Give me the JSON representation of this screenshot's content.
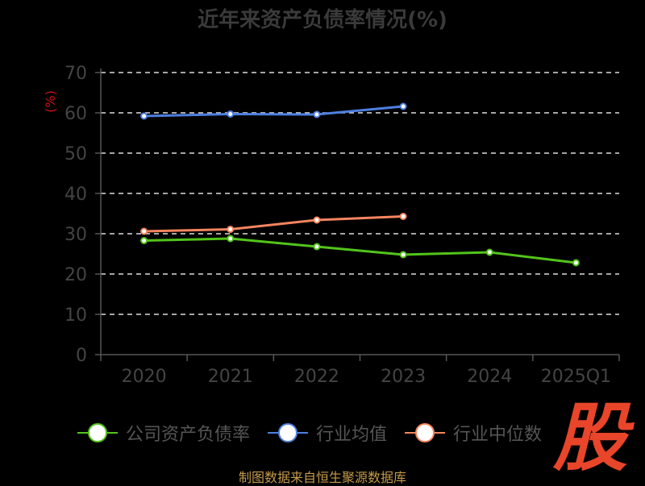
{
  "title": "近年来资产负债率情况(%)",
  "source": "制图数据来自恒生聚源数据库",
  "logo_text": "股",
  "colors": {
    "background": "#000000",
    "axis": "#555555",
    "grid": "#dddddd",
    "tick_label": "#444444",
    "unit_label": "#cc1111",
    "series": [
      "#52c41a",
      "#4e7fe0",
      "#f5855f"
    ]
  },
  "chart_data": {
    "type": "line",
    "title": "近年来资产负债率情况(%)",
    "ylabel": "(%)",
    "xlabel": "",
    "ylim": [
      0,
      70
    ],
    "yticks": [
      0,
      10,
      20,
      30,
      40,
      50,
      60,
      70
    ],
    "grid": true,
    "legend_position": "bottom",
    "categories": [
      "2020",
      "2021",
      "2022",
      "2023",
      "2024",
      "2025Q1"
    ],
    "series": [
      {
        "name": "公司资产负债率",
        "values": [
          28.3,
          28.8,
          26.8,
          24.8,
          25.4,
          22.8
        ]
      },
      {
        "name": "行业均值",
        "values": [
          59.2,
          59.7,
          59.6,
          61.6,
          null,
          null
        ]
      },
      {
        "name": "行业中位数",
        "values": [
          30.6,
          31.1,
          33.4,
          34.3,
          null,
          null
        ]
      }
    ]
  }
}
